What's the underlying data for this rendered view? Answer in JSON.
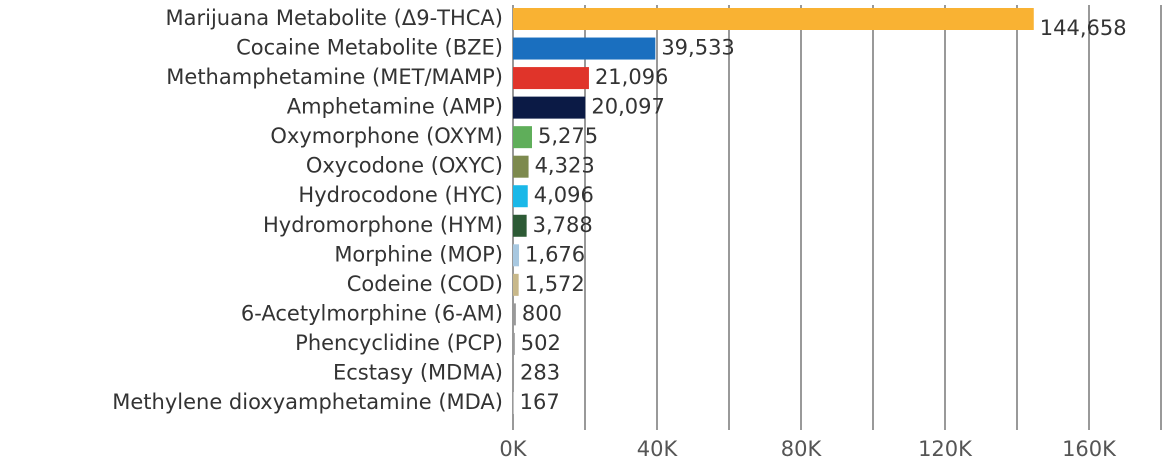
{
  "chart_data": {
    "type": "hbar",
    "categories": [
      "Marijuana Metabolite (Δ9-THCA)",
      "Cocaine Metabolite (BZE)",
      "Methamphetamine (MET/MAMP)",
      "Amphetamine (AMP)",
      "Oxymorphone (OXYM)",
      "Oxycodone (OXYC)",
      "Hydrocodone (HYC)",
      "Hydromorphone (HYM)",
      "Morphine (MOP)",
      "Codeine (COD)",
      "6-Acetylmorphine (6-AM)",
      "Phencyclidine (PCP)",
      "Ecstasy (MDMA)",
      "Methylene dioxyamphetamine (MDA)"
    ],
    "values": [
      144658,
      39533,
      21096,
      20097,
      5275,
      4323,
      4096,
      3788,
      1676,
      1572,
      800,
      502,
      283,
      167
    ],
    "value_labels": [
      "144,658",
      "39,533",
      "21,096",
      "20,097",
      "5,275",
      "4,323",
      "4,096",
      "3,788",
      "1,676",
      "1,572",
      "800",
      "502",
      "283",
      "167"
    ],
    "colors": [
      "#f9b233",
      "#1a6fbf",
      "#e0342a",
      "#0b1a45",
      "#5fae5a",
      "#7d8a4e",
      "#1ab8e8",
      "#2d5a35",
      "#a8c8e0",
      "#c8b88a",
      "#999999",
      "#999999",
      "#999999",
      "#999999"
    ],
    "xlim": [
      0,
      180000
    ],
    "xticks": [
      {
        "value": 0,
        "label": "0K"
      },
      {
        "value": 40000,
        "label": "40K"
      },
      {
        "value": 80000,
        "label": "80K"
      },
      {
        "value": 120000,
        "label": "120K"
      },
      {
        "value": 160000,
        "label": "160K"
      }
    ],
    "minor_xticks": [
      20000,
      60000,
      100000,
      140000,
      180000
    ],
    "grid": true
  }
}
